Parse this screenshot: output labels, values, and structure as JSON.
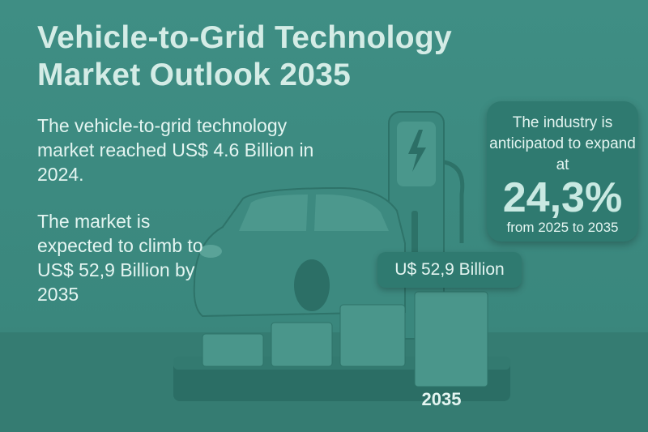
{
  "title_line1": "Vehicle-to-Grid Technology",
  "title_line2": "Market Outlook 2035",
  "paragraph1": "The vehicle-to-grid technology market reached US$ 4.6 Billion in 2024.",
  "paragraph2": "The market is expected to climb to US$ 52,9 Billion by 2035",
  "growth_card": {
    "intro": "The industry is anticipatod to expand at",
    "rate": "24,3%",
    "period": "from 2025 to 2035"
  },
  "bar_label": "U$ 52,9 Billion",
  "year_label": "2035",
  "icons": [
    "car-illustration",
    "charging-station-icon",
    "lightning-bolt-icon"
  ],
  "colors": {
    "background": "#3f8e84",
    "card": "#2f7a70",
    "text": "#d8f0ea"
  }
}
